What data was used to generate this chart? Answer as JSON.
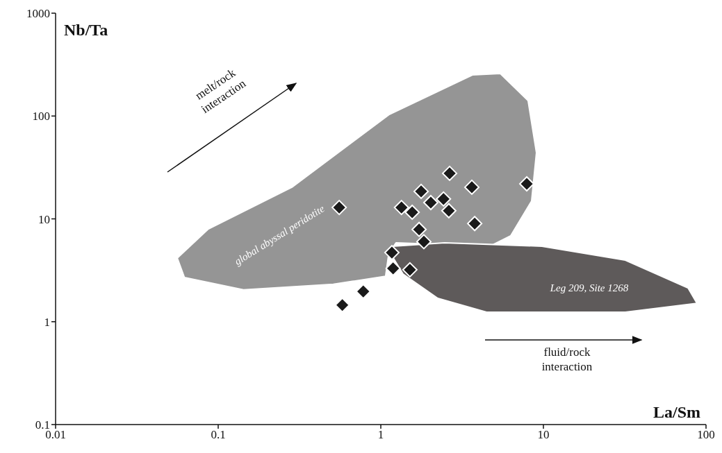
{
  "chart_data": {
    "type": "scatter",
    "xlabel": "La/Sm",
    "ylabel": "Nb/Ta",
    "log": "xy",
    "xlim": [
      0.01,
      100
    ],
    "xticks": [
      0.01,
      0.1,
      1,
      10,
      100
    ],
    "ylim": [
      0.1,
      1000
    ],
    "yticks": [
      0.1,
      1,
      10,
      100,
      1000
    ],
    "series": [
      {
        "type": "area",
        "color": "#959595",
        "x": [
          0.056,
          0.087,
          0.284,
          1.12,
          3.66,
          5.43,
          8.05,
          9.06,
          8.46,
          6.29,
          4.69,
          1.24,
          1.12,
          1.07,
          0.51,
          0.143,
          0.062
        ],
        "values": [
          4.16,
          7.98,
          20.3,
          103,
          251,
          259,
          141,
          44,
          14.9,
          6.84,
          5.42,
          5.85,
          4.63,
          2.77,
          2.31,
          2.04,
          2.69
        ]
      },
      {
        "type": "area",
        "color": "#5e5a5a",
        "x": [
          1.18,
          2.47,
          9.8,
          31.9,
          77.5,
          88,
          31.9,
          4.47,
          2.24,
          1.37,
          1.18
        ],
        "values": [
          5.42,
          5.85,
          5.42,
          3.97,
          2.13,
          1.51,
          1.24,
          1.24,
          1.69,
          2.91,
          4.29
        ]
      },
      {
        "marker": "diamond",
        "color": "#1a1a1a",
        "x": [
          0.555,
          2.65,
          3.63,
          1.77,
          1.34,
          1.56,
          2.03,
          2.43,
          2.62,
          3.78,
          1.72,
          1.84,
          1.17,
          1.19,
          1.51,
          0.78,
          0.58,
          7.9
        ],
        "values": [
          12.9,
          27.7,
          20.3,
          18.5,
          12.9,
          11.6,
          14.4,
          15.6,
          12.0,
          9.0,
          7.9,
          6.0,
          4.7,
          3.3,
          3.2,
          1.97,
          1.45,
          21.9
        ]
      }
    ],
    "annotations": [
      "global abyssal peridotite",
      "Leg 209, Site 1268",
      "melt/rock interaction",
      "fluid/rock interaction"
    ]
  }
}
